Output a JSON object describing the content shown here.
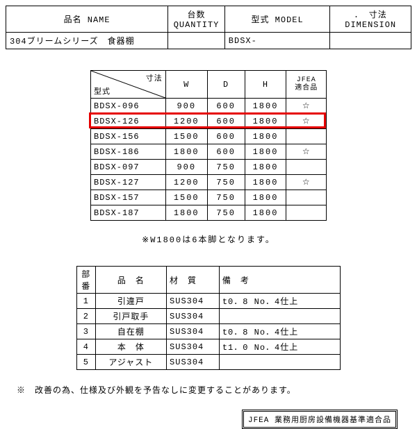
{
  "header": {
    "labels": {
      "name": "品名 NAME",
      "quantity": "台数 QUANTITY",
      "model": "型式 MODEL",
      "dimension": "寸法 DIMENSION"
    },
    "values": {
      "name": "304ブリームシリーズ　食器棚",
      "quantity": "",
      "model": "BDSX-",
      "dimension": ""
    },
    "bullet": "．"
  },
  "spec_table": {
    "diag_top": "寸法",
    "diag_bottom": "型式",
    "cols": {
      "w": "W",
      "d": "D",
      "h": "H",
      "jfea": "JFEA\n適合品"
    },
    "rows": [
      {
        "model": "BDSX-096",
        "w": "900",
        "d": "600",
        "h": "1800",
        "jfea": "☆",
        "highlight": false
      },
      {
        "model": "BDSX-126",
        "w": "1200",
        "d": "600",
        "h": "1800",
        "jfea": "☆",
        "highlight": true
      },
      {
        "model": "BDSX-156",
        "w": "1500",
        "d": "600",
        "h": "1800",
        "jfea": "",
        "highlight": false
      },
      {
        "model": "BDSX-186",
        "w": "1800",
        "d": "600",
        "h": "1800",
        "jfea": "☆",
        "highlight": false
      },
      {
        "model": "BDSX-097",
        "w": "900",
        "d": "750",
        "h": "1800",
        "jfea": "",
        "highlight": false
      },
      {
        "model": "BDSX-127",
        "w": "1200",
        "d": "750",
        "h": "1800",
        "jfea": "☆",
        "highlight": false
      },
      {
        "model": "BDSX-157",
        "w": "1500",
        "d": "750",
        "h": "1800",
        "jfea": "",
        "highlight": false
      },
      {
        "model": "BDSX-187",
        "w": "1800",
        "d": "750",
        "h": "1800",
        "jfea": "",
        "highlight": false
      }
    ],
    "highlight_color": "#e60000"
  },
  "note1": "※W1800は6本脚となります。",
  "parts_table": {
    "headers": {
      "no": "部番",
      "name": "品　名",
      "material": "材　質",
      "remark": "備　考"
    },
    "rows": [
      {
        "no": "1",
        "name": "引違戸",
        "material": "SUS304",
        "remark": "t0．8 No．4仕上"
      },
      {
        "no": "2",
        "name": "引戸取手",
        "material": "SUS304",
        "remark": ""
      },
      {
        "no": "3",
        "name": "自在棚",
        "material": "SUS304",
        "remark": "t0．8 No．4仕上"
      },
      {
        "no": "4",
        "name": "本　体",
        "material": "SUS304",
        "remark": "t1．0 No．4仕上"
      },
      {
        "no": "5",
        "name": "アジャスト",
        "material": "SUS304",
        "remark": ""
      }
    ]
  },
  "note2": "※　改善の為、仕様及び外観を予告なしに変更することがあります。",
  "jfea_mark": "JFEA 業務用厨房設備機器基準適合品"
}
